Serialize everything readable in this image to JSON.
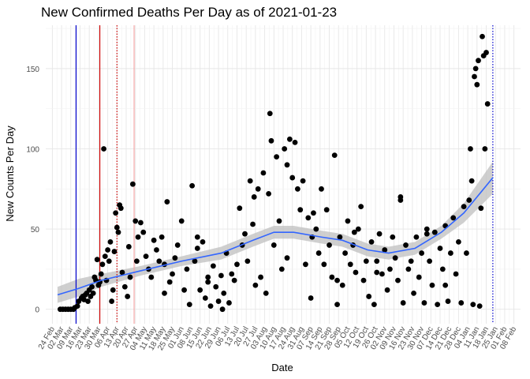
{
  "chart_data": {
    "type": "scatter",
    "title": "New Confirmed Deaths Per Day as of 2021-01-23",
    "xlabel": "Date",
    "ylabel": "New Counts Per Day",
    "x_domain": [
      "2020-02-19",
      "2021-02-13"
    ],
    "ylim": [
      -9,
      177
    ],
    "y_ticks": [
      0,
      50,
      100,
      150
    ],
    "x_tick_labels": [
      "24 Feb",
      "02 Mar",
      "09 Mar",
      "16 Mar",
      "23 Mar",
      "30 Mar",
      "06 Apr",
      "13 Apr",
      "20 Apr",
      "27 Apr",
      "04 May",
      "11 May",
      "18 May",
      "25 May",
      "01 Jun",
      "08 Jun",
      "15 Jun",
      "22 Jun",
      "29 Jun",
      "06 Jul",
      "13 Jul",
      "20 Jul",
      "27 Jul",
      "03 Aug",
      "10 Aug",
      "17 Aug",
      "24 Aug",
      "31 Aug",
      "07 Sep",
      "14 Sep",
      "21 Sep",
      "28 Sep",
      "05 Oct",
      "12 Oct",
      "19 Oct",
      "26 Oct",
      "02 Nov",
      "09 Nov",
      "16 Nov",
      "23 Nov",
      "30 Nov",
      "07 Dec",
      "14 Dec",
      "21 Dec",
      "28 Dec",
      "04 Jan",
      "11 Jan",
      "18 Jan",
      "25 Jan",
      "01 Feb",
      "08 Feb"
    ],
    "x_tick_dates": [
      "2020-02-24",
      "2020-03-02",
      "2020-03-09",
      "2020-03-16",
      "2020-03-23",
      "2020-03-30",
      "2020-04-06",
      "2020-04-13",
      "2020-04-20",
      "2020-04-27",
      "2020-05-04",
      "2020-05-11",
      "2020-05-18",
      "2020-05-25",
      "2020-06-01",
      "2020-06-08",
      "2020-06-15",
      "2020-06-22",
      "2020-06-29",
      "2020-07-06",
      "2020-07-13",
      "2020-07-20",
      "2020-07-27",
      "2020-08-03",
      "2020-08-10",
      "2020-08-17",
      "2020-08-24",
      "2020-08-31",
      "2020-09-07",
      "2020-09-14",
      "2020-09-21",
      "2020-09-28",
      "2020-10-05",
      "2020-10-12",
      "2020-10-19",
      "2020-10-26",
      "2020-11-02",
      "2020-11-09",
      "2020-11-16",
      "2020-11-23",
      "2020-11-30",
      "2020-12-07",
      "2020-12-14",
      "2020-12-21",
      "2020-12-28",
      "2021-01-04",
      "2021-01-11",
      "2021-01-18",
      "2021-01-25",
      "2021-02-01",
      "2021-02-08"
    ],
    "grid": true,
    "legend": "none",
    "point_color": "#000000",
    "smooth_color": "#3366ff",
    "ribbon_color": "#bfbfbf",
    "vlines": [
      {
        "date": "2020-03-13",
        "color": "#0000cc",
        "style": "solid"
      },
      {
        "date": "2020-03-31",
        "color": "#cc0000",
        "style": "solid"
      },
      {
        "date": "2020-04-13",
        "color": "#cc0000",
        "style": "dotted"
      },
      {
        "date": "2020-04-26",
        "color": "#f4a7a7",
        "style": "solid"
      },
      {
        "date": "2021-01-23",
        "color": "#0000cc",
        "style": "dotted"
      }
    ],
    "smooth": [
      {
        "x": "2020-02-28",
        "y": 9,
        "lo": 4,
        "hi": 14
      },
      {
        "x": "2020-03-15",
        "y": 13,
        "lo": 8,
        "hi": 19
      },
      {
        "x": "2020-04-01",
        "y": 18,
        "lo": 14,
        "hi": 22
      },
      {
        "x": "2020-05-01",
        "y": 24,
        "lo": 21,
        "hi": 27
      },
      {
        "x": "2020-06-01",
        "y": 30,
        "lo": 27,
        "hi": 33
      },
      {
        "x": "2020-07-01",
        "y": 35,
        "lo": 31,
        "hi": 39
      },
      {
        "x": "2020-07-25",
        "y": 43,
        "lo": 39,
        "hi": 47
      },
      {
        "x": "2020-08-10",
        "y": 48,
        "lo": 44,
        "hi": 52
      },
      {
        "x": "2020-08-25",
        "y": 48,
        "lo": 44,
        "hi": 52
      },
      {
        "x": "2020-09-15",
        "y": 45,
        "lo": 41,
        "hi": 49
      },
      {
        "x": "2020-10-01",
        "y": 43,
        "lo": 39,
        "hi": 47
      },
      {
        "x": "2020-10-20",
        "y": 37,
        "lo": 33,
        "hi": 41
      },
      {
        "x": "2020-11-05",
        "y": 35,
        "lo": 31,
        "hi": 39
      },
      {
        "x": "2020-11-25",
        "y": 38,
        "lo": 34,
        "hi": 42
      },
      {
        "x": "2020-12-15",
        "y": 48,
        "lo": 44,
        "hi": 52
      },
      {
        "x": "2021-01-01",
        "y": 60,
        "lo": 54,
        "hi": 66
      },
      {
        "x": "2021-01-23",
        "y": 82,
        "lo": 72,
        "hi": 92
      }
    ],
    "points": [
      [
        "2020-03-01",
        0
      ],
      [
        "2020-03-03",
        0
      ],
      [
        "2020-03-05",
        0
      ],
      [
        "2020-03-07",
        0
      ],
      [
        "2020-03-09",
        0
      ],
      [
        "2020-03-11",
        0
      ],
      [
        "2020-03-12",
        1
      ],
      [
        "2020-03-14",
        2
      ],
      [
        "2020-03-15",
        5
      ],
      [
        "2020-03-17",
        7
      ],
      [
        "2020-03-18",
        8
      ],
      [
        "2020-03-19",
        6
      ],
      [
        "2020-03-20",
        9
      ],
      [
        "2020-03-21",
        10
      ],
      [
        "2020-03-22",
        5
      ],
      [
        "2020-03-23",
        12
      ],
      [
        "2020-03-24",
        8
      ],
      [
        "2020-03-25",
        14
      ],
      [
        "2020-03-26",
        10
      ],
      [
        "2020-03-27",
        20
      ],
      [
        "2020-03-28",
        18
      ],
      [
        "2020-03-29",
        31
      ],
      [
        "2020-03-30",
        15
      ],
      [
        "2020-03-31",
        17
      ],
      [
        "2020-04-01",
        22
      ],
      [
        "2020-04-02",
        28
      ],
      [
        "2020-04-03",
        100
      ],
      [
        "2020-04-04",
        33
      ],
      [
        "2020-04-05",
        18
      ],
      [
        "2020-04-06",
        37
      ],
      [
        "2020-04-07",
        30
      ],
      [
        "2020-04-08",
        42
      ],
      [
        "2020-04-09",
        5
      ],
      [
        "2020-04-10",
        12
      ],
      [
        "2020-04-11",
        36
      ],
      [
        "2020-04-12",
        60
      ],
      [
        "2020-04-13",
        51
      ],
      [
        "2020-04-14",
        48
      ],
      [
        "2020-04-15",
        65
      ],
      [
        "2020-04-16",
        63
      ],
      [
        "2020-04-17",
        23
      ],
      [
        "2020-04-19",
        14
      ],
      [
        "2020-04-21",
        8
      ],
      [
        "2020-04-23",
        20
      ],
      [
        "2020-04-25",
        78
      ],
      [
        "2020-04-27",
        55
      ],
      [
        "2020-04-28",
        30
      ],
      [
        "2020-04-29",
        45
      ],
      [
        "2020-05-01",
        54
      ],
      [
        "2020-05-03",
        48
      ],
      [
        "2020-05-05",
        33
      ],
      [
        "2020-05-07",
        25
      ],
      [
        "2020-05-09",
        20
      ],
      [
        "2020-05-11",
        43
      ],
      [
        "2020-05-13",
        37
      ],
      [
        "2020-05-15",
        30
      ],
      [
        "2020-05-17",
        45
      ],
      [
        "2020-05-19",
        28
      ],
      [
        "2020-05-21",
        67
      ],
      [
        "2020-05-23",
        17
      ],
      [
        "2020-05-25",
        22
      ],
      [
        "2020-05-27",
        32
      ],
      [
        "2020-05-29",
        40
      ],
      [
        "2020-06-01",
        55
      ],
      [
        "2020-06-03",
        12
      ],
      [
        "2020-06-05",
        25
      ],
      [
        "2020-06-07",
        3
      ],
      [
        "2020-06-09",
        77
      ],
      [
        "2020-06-11",
        30
      ],
      [
        "2020-06-13",
        45
      ],
      [
        "2020-06-15",
        12
      ],
      [
        "2020-06-17",
        42
      ],
      [
        "2020-06-19",
        7
      ],
      [
        "2020-06-21",
        20
      ],
      [
        "2020-06-23",
        2
      ],
      [
        "2020-06-25",
        27
      ],
      [
        "2020-06-27",
        14
      ],
      [
        "2020-06-29",
        5
      ],
      [
        "2020-07-01",
        21
      ],
      [
        "2020-07-03",
        10
      ],
      [
        "2020-07-05",
        35
      ],
      [
        "2020-07-07",
        4
      ],
      [
        "2020-07-09",
        22
      ],
      [
        "2020-07-11",
        18
      ],
      [
        "2020-07-13",
        28
      ],
      [
        "2020-07-15",
        63
      ],
      [
        "2020-07-17",
        40
      ],
      [
        "2020-07-19",
        47
      ],
      [
        "2020-07-21",
        30
      ],
      [
        "2020-07-23",
        80
      ],
      [
        "2020-07-25",
        53
      ],
      [
        "2020-07-27",
        15
      ],
      [
        "2020-07-29",
        75
      ],
      [
        "2020-07-31",
        20
      ],
      [
        "2020-08-02",
        85
      ],
      [
        "2020-08-04",
        10
      ],
      [
        "2020-08-06",
        72
      ],
      [
        "2020-08-07",
        122
      ],
      [
        "2020-08-08",
        105
      ],
      [
        "2020-08-10",
        40
      ],
      [
        "2020-08-12",
        95
      ],
      [
        "2020-08-14",
        55
      ],
      [
        "2020-08-16",
        25
      ],
      [
        "2020-08-18",
        100
      ],
      [
        "2020-08-20",
        90
      ],
      [
        "2020-08-22",
        106
      ],
      [
        "2020-08-24",
        82
      ],
      [
        "2020-08-26",
        104
      ],
      [
        "2020-08-28",
        75
      ],
      [
        "2020-08-30",
        62
      ],
      [
        "2020-09-01",
        80
      ],
      [
        "2020-09-03",
        28
      ],
      [
        "2020-09-05",
        57
      ],
      [
        "2020-09-07",
        7
      ],
      [
        "2020-09-09",
        60
      ],
      [
        "2020-09-11",
        50
      ],
      [
        "2020-09-13",
        35
      ],
      [
        "2020-09-15",
        75
      ],
      [
        "2020-09-17",
        28
      ],
      [
        "2020-09-19",
        62
      ],
      [
        "2020-09-21",
        40
      ],
      [
        "2020-09-23",
        20
      ],
      [
        "2020-09-25",
        96
      ],
      [
        "2020-09-27",
        3
      ],
      [
        "2020-09-29",
        45
      ],
      [
        "2020-10-01",
        15
      ],
      [
        "2020-10-03",
        35
      ],
      [
        "2020-10-05",
        55
      ],
      [
        "2020-10-07",
        28
      ],
      [
        "2020-10-09",
        40
      ],
      [
        "2020-10-11",
        23
      ],
      [
        "2020-10-13",
        50
      ],
      [
        "2020-10-15",
        64
      ],
      [
        "2020-10-17",
        18
      ],
      [
        "2020-10-19",
        30
      ],
      [
        "2020-10-21",
        8
      ],
      [
        "2020-10-23",
        42
      ],
      [
        "2020-10-25",
        3
      ],
      [
        "2020-10-27",
        30
      ],
      [
        "2020-10-29",
        47
      ],
      [
        "2020-10-31",
        22
      ],
      [
        "2020-11-02",
        37
      ],
      [
        "2020-11-04",
        12
      ],
      [
        "2020-11-06",
        25
      ],
      [
        "2020-11-08",
        45
      ],
      [
        "2020-11-10",
        32
      ],
      [
        "2020-11-12",
        18
      ],
      [
        "2020-11-14",
        68
      ],
      [
        "2020-11-16",
        4
      ],
      [
        "2020-11-18",
        40
      ],
      [
        "2020-11-20",
        25
      ],
      [
        "2020-11-22",
        30
      ],
      [
        "2020-11-24",
        10
      ],
      [
        "2020-11-26",
        45
      ],
      [
        "2020-11-28",
        20
      ],
      [
        "2020-11-30",
        35
      ],
      [
        "2020-12-02",
        4
      ],
      [
        "2020-12-04",
        50
      ],
      [
        "2020-12-06",
        30
      ],
      [
        "2020-12-08",
        15
      ],
      [
        "2020-12-10",
        48
      ],
      [
        "2020-12-12",
        3
      ],
      [
        "2020-12-14",
        38
      ],
      [
        "2020-12-16",
        25
      ],
      [
        "2020-12-18",
        52
      ],
      [
        "2020-12-20",
        5
      ],
      [
        "2020-12-22",
        35
      ],
      [
        "2020-12-24",
        57
      ],
      [
        "2020-12-26",
        22
      ],
      [
        "2020-12-28",
        42
      ],
      [
        "2020-12-30",
        4
      ],
      [
        "2021-01-01",
        64
      ],
      [
        "2021-01-03",
        35
      ],
      [
        "2021-01-05",
        68
      ],
      [
        "2021-01-06",
        100
      ],
      [
        "2021-01-07",
        80
      ],
      [
        "2021-01-08",
        3
      ],
      [
        "2021-01-09",
        145
      ],
      [
        "2021-01-10",
        150
      ],
      [
        "2021-01-11",
        140
      ],
      [
        "2021-01-12",
        155
      ],
      [
        "2021-01-13",
        2
      ],
      [
        "2021-01-14",
        63
      ],
      [
        "2021-01-15",
        170
      ],
      [
        "2021-01-16",
        158
      ],
      [
        "2021-01-17",
        100
      ],
      [
        "2021-01-18",
        160
      ],
      [
        "2021-01-19",
        128
      ],
      [
        "2020-08-20",
        32
      ],
      [
        "2020-09-08",
        45
      ],
      [
        "2020-10-10",
        48
      ],
      [
        "2020-11-14",
        70
      ],
      [
        "2020-12-04",
        47
      ],
      [
        "2020-06-21",
        17
      ],
      [
        "2020-07-02",
        0
      ],
      [
        "2020-05-19",
        10
      ],
      [
        "2020-04-22",
        39
      ],
      [
        "2020-06-13",
        38
      ],
      [
        "2020-07-26",
        70
      ],
      [
        "2020-09-27",
        18
      ],
      [
        "2020-10-27",
        23
      ],
      [
        "2020-12-18",
        15
      ]
    ]
  }
}
